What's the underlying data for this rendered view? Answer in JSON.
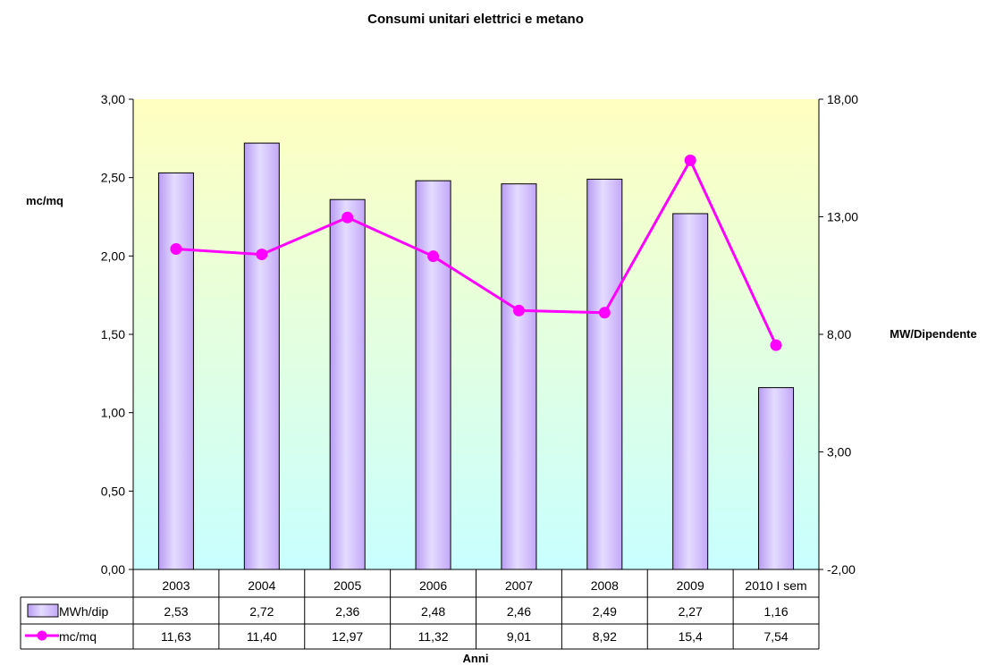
{
  "chart_data": {
    "type": "bar",
    "title": "Consumi unitari elettrici e metano",
    "xlabel": "Anni",
    "ylabel_left": "mc/mq",
    "ylabel_right": "MW/Dipendente",
    "categories": [
      "2003",
      "2004",
      "2005",
      "2006",
      "2007",
      "2008",
      "2009",
      "2010 I sem"
    ],
    "y_left": {
      "min": 0,
      "max": 3,
      "step": 0.5,
      "ticks": [
        "0,00",
        "0,50",
        "1,00",
        "1,50",
        "2,00",
        "2,50",
        "3,00"
      ]
    },
    "y_right": {
      "min": -2,
      "max": 18,
      "step": 5,
      "ticks": [
        "-2,00",
        "3,00",
        "8,00",
        "13,00",
        "18,00"
      ]
    },
    "grid": false,
    "legend_placement": "data table below plot",
    "series": [
      {
        "name": "MWh/dip",
        "type": "bar",
        "axis": "left",
        "color": "#cc99ff",
        "values": [
          2.53,
          2.72,
          2.36,
          2.48,
          2.46,
          2.49,
          2.27,
          1.16
        ],
        "labels": [
          "2,53",
          "2,72",
          "2,36",
          "2,48",
          "2,46",
          "2,49",
          "2,27",
          "1,16"
        ]
      },
      {
        "name": "mc/mq",
        "type": "line",
        "axis": "right",
        "color": "#ff00ff",
        "values": [
          11.63,
          11.4,
          12.97,
          11.32,
          9.01,
          8.92,
          15.4,
          7.54
        ],
        "labels": [
          "11,63",
          "11,40",
          "12,97",
          "11,32",
          "9,01",
          "8,92",
          "15,4",
          "7,54"
        ]
      }
    ],
    "colors": {
      "plot_top": "#ffffc0",
      "plot_bottom": "#c8ffff",
      "bar_fill": "#cc99ff",
      "bar_highlight": "#e0d0ff",
      "line": "#ff00ff"
    }
  }
}
